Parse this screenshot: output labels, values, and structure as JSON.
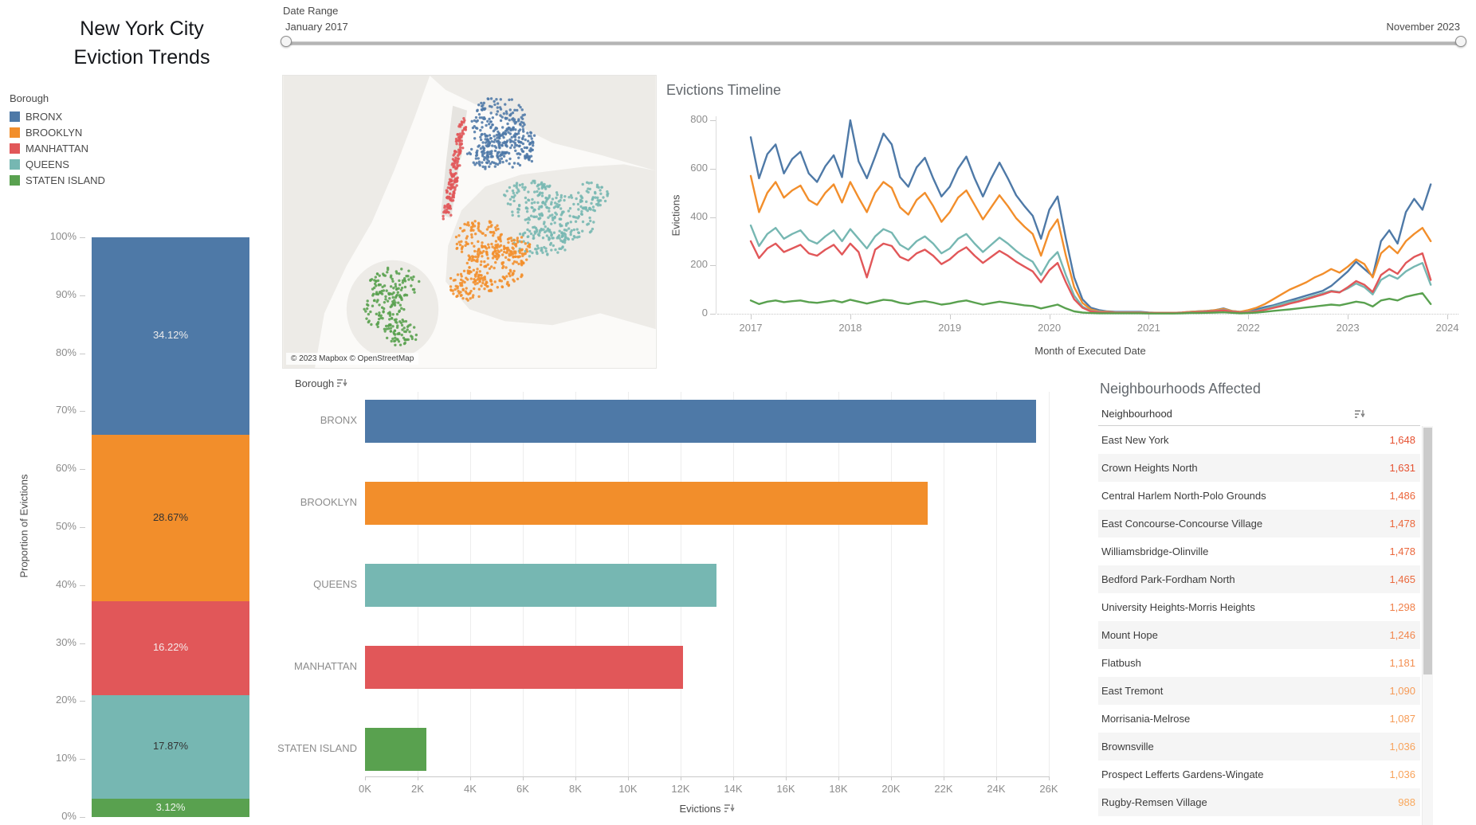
{
  "title": {
    "line1": "New York City",
    "line2": "Eviction Trends"
  },
  "date_range": {
    "label": "Date Range",
    "start_label": "January 2017",
    "end_label": "November 2023"
  },
  "legend": {
    "title": "Borough",
    "items": [
      {
        "label": "BRONX",
        "color": "#4e79a7"
      },
      {
        "label": "BROOKLYN",
        "color": "#f28e2b"
      },
      {
        "label": "MANHATTAN",
        "color": "#e15759"
      },
      {
        "label": "QUEENS",
        "color": "#76b7b2"
      },
      {
        "label": "STATEN ISLAND",
        "color": "#59a14f"
      }
    ]
  },
  "map": {
    "attribution": "© 2023 Mapbox  © OpenStreetMap"
  },
  "chart_data": [
    {
      "id": "proportion_stacked",
      "type": "bar",
      "stacked": true,
      "ylabel": "Proportion of Evictions",
      "ylim": [
        0,
        100
      ],
      "yticks": [
        "0%",
        "10%",
        "20%",
        "30%",
        "40%",
        "50%",
        "60%",
        "70%",
        "80%",
        "90%",
        "100%"
      ],
      "categories": [
        "BRONX",
        "BROOKLYN",
        "MANHATTAN",
        "QUEENS",
        "STATEN ISLAND"
      ],
      "values": [
        34.12,
        28.67,
        16.22,
        17.87,
        3.12
      ],
      "value_labels": [
        "34.12%",
        "28.67%",
        "16.22%",
        "17.87%",
        "3.12%"
      ],
      "colors": [
        "#4e79a7",
        "#f28e2b",
        "#e15759",
        "#76b7b2",
        "#59a14f"
      ],
      "label_colors": [
        "#ebebeb",
        "#333333",
        "#f5eaea",
        "#333333",
        "#eef5ec"
      ]
    },
    {
      "id": "evictions_timeline",
      "type": "line",
      "title": "Evictions Timeline",
      "xlabel": "Month of Executed Date",
      "ylabel": "Evictions",
      "ylim": [
        0,
        800
      ],
      "yticks": [
        0,
        200,
        400,
        600,
        800
      ],
      "xticks": [
        "2017",
        "2018",
        "2019",
        "2020",
        "2021",
        "2022",
        "2023",
        "2024"
      ],
      "x_start": "2017-01",
      "x_end": "2023-11",
      "series": [
        {
          "name": "BRONX",
          "color": "#4e79a7",
          "values": [
            730,
            560,
            660,
            700,
            580,
            640,
            670,
            580,
            545,
            610,
            655,
            565,
            800,
            630,
            560,
            650,
            745,
            700,
            565,
            525,
            605,
            645,
            560,
            485,
            525,
            600,
            650,
            560,
            485,
            560,
            625,
            560,
            490,
            445,
            405,
            310,
            430,
            485,
            310,
            150,
            60,
            25,
            15,
            10,
            8,
            8,
            8,
            8,
            5,
            4,
            4,
            4,
            5,
            8,
            10,
            12,
            15,
            22,
            12,
            8,
            12,
            18,
            28,
            35,
            45,
            55,
            65,
            75,
            85,
            95,
            115,
            145,
            175,
            215,
            185,
            155,
            300,
            345,
            290,
            420,
            475,
            430,
            535
          ]
        },
        {
          "name": "BROOKLYN",
          "color": "#f28e2b",
          "values": [
            570,
            420,
            500,
            545,
            480,
            510,
            530,
            470,
            450,
            500,
            535,
            460,
            545,
            480,
            420,
            500,
            545,
            520,
            440,
            410,
            470,
            500,
            445,
            380,
            420,
            480,
            510,
            450,
            390,
            440,
            490,
            445,
            395,
            360,
            330,
            240,
            340,
            390,
            240,
            110,
            45,
            18,
            10,
            8,
            6,
            6,
            6,
            6,
            4,
            4,
            4,
            4,
            5,
            8,
            10,
            12,
            15,
            20,
            12,
            8,
            15,
            25,
            40,
            60,
            80,
            100,
            115,
            130,
            150,
            165,
            185,
            170,
            195,
            225,
            205,
            150,
            250,
            280,
            250,
            300,
            330,
            355,
            300
          ]
        },
        {
          "name": "QUEENS",
          "color": "#76b7b2",
          "values": [
            365,
            280,
            330,
            355,
            310,
            330,
            345,
            305,
            290,
            320,
            345,
            300,
            350,
            310,
            270,
            320,
            350,
            335,
            285,
            265,
            300,
            320,
            290,
            250,
            270,
            310,
            330,
            290,
            255,
            285,
            315,
            290,
            260,
            235,
            215,
            160,
            220,
            255,
            160,
            75,
            30,
            12,
            8,
            6,
            5,
            5,
            5,
            5,
            3,
            3,
            3,
            3,
            4,
            6,
            8,
            10,
            12,
            16,
            10,
            6,
            8,
            12,
            20,
            30,
            40,
            50,
            55,
            65,
            75,
            85,
            95,
            90,
            105,
            125,
            110,
            80,
            140,
            160,
            145,
            175,
            195,
            210,
            120
          ]
        },
        {
          "name": "MANHATTAN",
          "color": "#e15759",
          "values": [
            300,
            230,
            270,
            290,
            255,
            270,
            285,
            250,
            240,
            265,
            285,
            245,
            290,
            255,
            150,
            265,
            290,
            280,
            235,
            220,
            250,
            265,
            240,
            205,
            225,
            255,
            275,
            240,
            210,
            235,
            260,
            240,
            215,
            195,
            175,
            130,
            180,
            210,
            130,
            60,
            25,
            10,
            6,
            5,
            4,
            4,
            4,
            4,
            3,
            3,
            3,
            3,
            4,
            5,
            7,
            9,
            11,
            14,
            9,
            5,
            6,
            10,
            16,
            24,
            32,
            42,
            50,
            60,
            70,
            80,
            92,
            88,
            110,
            135,
            120,
            90,
            160,
            185,
            165,
            210,
            235,
            250,
            140
          ]
        },
        {
          "name": "STATEN ISLAND",
          "color": "#59a14f",
          "values": [
            55,
            40,
            50,
            55,
            48,
            52,
            55,
            48,
            45,
            50,
            55,
            47,
            58,
            50,
            42,
            50,
            58,
            55,
            45,
            40,
            48,
            52,
            46,
            38,
            42,
            50,
            55,
            46,
            38,
            44,
            50,
            45,
            40,
            35,
            32,
            22,
            30,
            38,
            22,
            10,
            5,
            3,
            2,
            2,
            2,
            2,
            2,
            2,
            1,
            1,
            1,
            1,
            2,
            3,
            3,
            4,
            5,
            6,
            4,
            2,
            3,
            5,
            8,
            12,
            15,
            18,
            22,
            26,
            30,
            34,
            38,
            35,
            42,
            50,
            45,
            30,
            55,
            62,
            55,
            70,
            78,
            85,
            40
          ]
        }
      ]
    },
    {
      "id": "evictions_by_borough",
      "type": "bar",
      "orientation": "horizontal",
      "header": "Borough",
      "xlabel": "Evictions",
      "xlim": [
        0,
        26000
      ],
      "xticks": [
        "0K",
        "2K",
        "4K",
        "6K",
        "8K",
        "10K",
        "12K",
        "14K",
        "16K",
        "18K",
        "20K",
        "22K",
        "24K",
        "26K"
      ],
      "categories": [
        "BRONX",
        "BROOKLYN",
        "QUEENS",
        "MANHATTAN",
        "STATEN ISLAND"
      ],
      "values": [
        25500,
        21400,
        13350,
        12100,
        2330
      ],
      "colors": [
        "#4e79a7",
        "#f28e2b",
        "#76b7b2",
        "#e15759",
        "#59a14f"
      ]
    },
    {
      "id": "neighbourhoods_table",
      "type": "table",
      "title": "Neighbourhoods Affected",
      "columns": [
        "Neighbourhood"
      ],
      "rows": [
        {
          "name": "East New York",
          "value": 1648,
          "display": "1,648"
        },
        {
          "name": "Crown Heights North",
          "value": 1631,
          "display": "1,631"
        },
        {
          "name": "Central Harlem North-Polo Grounds",
          "value": 1486,
          "display": "1,486"
        },
        {
          "name": "East Concourse-Concourse Village",
          "value": 1478,
          "display": "1,478"
        },
        {
          "name": "Williamsbridge-Olinville",
          "value": 1478,
          "display": "1,478"
        },
        {
          "name": "Bedford Park-Fordham North",
          "value": 1465,
          "display": "1,465"
        },
        {
          "name": "University Heights-Morris Heights",
          "value": 1298,
          "display": "1,298"
        },
        {
          "name": "Mount Hope",
          "value": 1246,
          "display": "1,246"
        },
        {
          "name": "Flatbush",
          "value": 1181,
          "display": "1,181"
        },
        {
          "name": "East Tremont",
          "value": 1090,
          "display": "1,090"
        },
        {
          "name": "Morrisania-Melrose",
          "value": 1087,
          "display": "1,087"
        },
        {
          "name": "Brownsville",
          "value": 1036,
          "display": "1,036"
        },
        {
          "name": "Prospect Lefferts Gardens-Wingate",
          "value": 1036,
          "display": "1,036"
        },
        {
          "name": "Rugby-Remsen Village",
          "value": 988,
          "display": "988"
        }
      ]
    }
  ]
}
